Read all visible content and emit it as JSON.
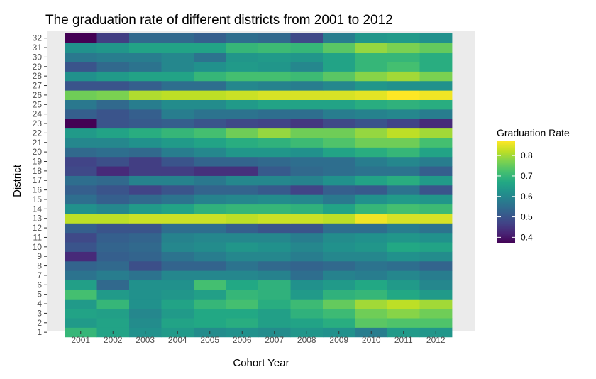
{
  "chart_data": {
    "type": "heatmap",
    "title": "The graduation rate of different districts from 2001 to 2012",
    "xlabel": "Cohort Year",
    "ylabel": "District",
    "x": [
      "2001",
      "2002",
      "2003",
      "2004",
      "2005",
      "2006",
      "2007",
      "2008",
      "2009",
      "2010",
      "2011",
      "2012"
    ],
    "y": [
      "1",
      "2",
      "3",
      "4",
      "5",
      "6",
      "7",
      "8",
      "9",
      "10",
      "11",
      "12",
      "13",
      "14",
      "15",
      "16",
      "17",
      "18",
      "19",
      "20",
      "21",
      "22",
      "23",
      "24",
      "25",
      "26",
      "27",
      "28",
      "29",
      "30",
      "31",
      "32"
    ],
    "values": [
      [
        0.7,
        0.66,
        0.62,
        0.64,
        0.61,
        0.62,
        0.61,
        0.63,
        0.62,
        0.58,
        0.64,
        0.63
      ],
      [
        0.64,
        0.66,
        0.61,
        0.66,
        0.67,
        0.68,
        0.65,
        0.66,
        0.68,
        0.74,
        0.73,
        0.73
      ],
      [
        0.66,
        0.65,
        0.6,
        0.64,
        0.67,
        0.67,
        0.65,
        0.69,
        0.71,
        0.76,
        0.78,
        0.76
      ],
      [
        0.64,
        0.7,
        0.62,
        0.66,
        0.7,
        0.72,
        0.68,
        0.71,
        0.75,
        0.8,
        0.82,
        0.8
      ],
      [
        0.72,
        0.64,
        0.62,
        0.63,
        0.65,
        0.7,
        0.69,
        0.64,
        0.69,
        0.7,
        0.67,
        0.64
      ],
      [
        0.65,
        0.54,
        0.62,
        0.62,
        0.72,
        0.67,
        0.69,
        0.62,
        0.64,
        0.67,
        0.64,
        0.6
      ],
      [
        0.56,
        0.58,
        0.56,
        0.6,
        0.6,
        0.6,
        0.59,
        0.55,
        0.59,
        0.58,
        0.6,
        0.58
      ],
      [
        0.53,
        0.54,
        0.49,
        0.53,
        0.53,
        0.56,
        0.54,
        0.53,
        0.54,
        0.56,
        0.55,
        0.53
      ],
      [
        0.43,
        0.52,
        0.53,
        0.56,
        0.58,
        0.6,
        0.6,
        0.58,
        0.6,
        0.6,
        0.62,
        0.61
      ],
      [
        0.5,
        0.53,
        0.54,
        0.6,
        0.61,
        0.63,
        0.62,
        0.6,
        0.62,
        0.63,
        0.67,
        0.66
      ],
      [
        0.48,
        0.52,
        0.53,
        0.59,
        0.6,
        0.6,
        0.6,
        0.58,
        0.61,
        0.62,
        0.63,
        0.62
      ],
      [
        0.52,
        0.5,
        0.5,
        0.55,
        0.55,
        0.52,
        0.5,
        0.5,
        0.55,
        0.55,
        0.58,
        0.56
      ],
      [
        0.82,
        0.82,
        0.83,
        0.83,
        0.83,
        0.82,
        0.83,
        0.83,
        0.82,
        0.86,
        0.84,
        0.84
      ],
      [
        0.62,
        0.6,
        0.64,
        0.66,
        0.69,
        0.7,
        0.7,
        0.69,
        0.66,
        0.7,
        0.72,
        0.71
      ],
      [
        0.55,
        0.52,
        0.54,
        0.56,
        0.59,
        0.6,
        0.61,
        0.6,
        0.57,
        0.62,
        0.64,
        0.63
      ],
      [
        0.52,
        0.5,
        0.47,
        0.5,
        0.53,
        0.53,
        0.51,
        0.47,
        0.52,
        0.51,
        0.56,
        0.5
      ],
      [
        0.55,
        0.54,
        0.59,
        0.59,
        0.57,
        0.6,
        0.6,
        0.59,
        0.62,
        0.66,
        0.68,
        0.64
      ],
      [
        0.48,
        0.43,
        0.46,
        0.46,
        0.44,
        0.44,
        0.51,
        0.54,
        0.55,
        0.56,
        0.56,
        0.52
      ],
      [
        0.47,
        0.49,
        0.46,
        0.5,
        0.53,
        0.53,
        0.54,
        0.55,
        0.55,
        0.58,
        0.6,
        0.58
      ],
      [
        0.54,
        0.55,
        0.54,
        0.58,
        0.6,
        0.63,
        0.63,
        0.62,
        0.66,
        0.68,
        0.7,
        0.66
      ],
      [
        0.6,
        0.6,
        0.62,
        0.64,
        0.66,
        0.68,
        0.69,
        0.71,
        0.73,
        0.76,
        0.76,
        0.72
      ],
      [
        0.64,
        0.66,
        0.68,
        0.7,
        0.72,
        0.76,
        0.79,
        0.76,
        0.76,
        0.79,
        0.82,
        0.8
      ],
      [
        0.37,
        0.5,
        0.51,
        0.52,
        0.5,
        0.48,
        0.47,
        0.45,
        0.48,
        0.5,
        0.47,
        0.43
      ],
      [
        0.52,
        0.5,
        0.52,
        0.58,
        0.56,
        0.56,
        0.55,
        0.55,
        0.58,
        0.59,
        0.6,
        0.58
      ],
      [
        0.57,
        0.54,
        0.58,
        0.61,
        0.61,
        0.64,
        0.66,
        0.66,
        0.66,
        0.68,
        0.69,
        0.68
      ],
      [
        0.76,
        0.77,
        0.81,
        0.82,
        0.82,
        0.83,
        0.84,
        0.84,
        0.84,
        0.85,
        0.87,
        0.86
      ],
      [
        0.5,
        0.5,
        0.52,
        0.55,
        0.55,
        0.6,
        0.59,
        0.58,
        0.6,
        0.63,
        0.62,
        0.62
      ],
      [
        0.62,
        0.64,
        0.66,
        0.66,
        0.7,
        0.72,
        0.72,
        0.71,
        0.74,
        0.78,
        0.8,
        0.77
      ],
      [
        0.5,
        0.54,
        0.56,
        0.6,
        0.62,
        0.64,
        0.63,
        0.6,
        0.66,
        0.7,
        0.72,
        0.68
      ],
      [
        0.57,
        0.58,
        0.58,
        0.6,
        0.56,
        0.63,
        0.64,
        0.63,
        0.66,
        0.7,
        0.7,
        0.68
      ],
      [
        0.62,
        0.63,
        0.66,
        0.66,
        0.66,
        0.7,
        0.71,
        0.7,
        0.74,
        0.79,
        0.77,
        0.75
      ],
      [
        0.37,
        0.46,
        0.54,
        0.54,
        0.52,
        0.55,
        0.54,
        0.48,
        0.58,
        0.63,
        0.64,
        0.62
      ]
    ],
    "legend": {
      "title": "Graduation Rate",
      "ticks": [
        "0.4",
        "0.5",
        "0.6",
        "0.7",
        "0.8"
      ],
      "tick_values": [
        0.4,
        0.5,
        0.6,
        0.7,
        0.8
      ],
      "range": [
        0.37,
        0.87
      ],
      "placement": "right"
    },
    "colorscale": [
      "#440154",
      "#482475",
      "#414487",
      "#355f8d",
      "#2a788e",
      "#21918c",
      "#22a884",
      "#44bf70",
      "#7ad151",
      "#bddf26",
      "#fde725"
    ],
    "panel_background": "#ebebeb",
    "grid": true
  }
}
